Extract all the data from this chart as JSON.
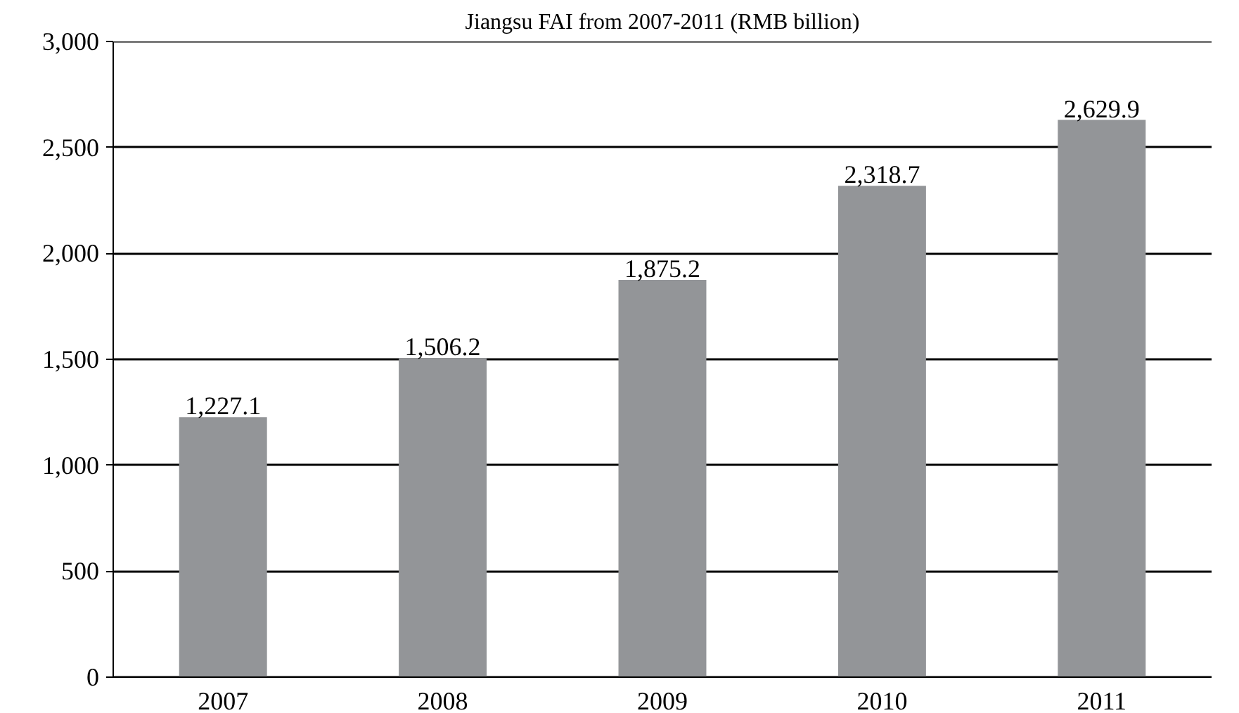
{
  "chart_data": {
    "type": "bar",
    "title": "Jiangsu FAI from 2007-2011 (RMB billion)",
    "categories": [
      "2007",
      "2008",
      "2009",
      "2010",
      "2011"
    ],
    "values": [
      1227.1,
      1506.2,
      1875.2,
      2318.7,
      2629.9
    ],
    "value_labels": [
      "1,227.1",
      "1,506.2",
      "1,875.2",
      "2,318.7",
      "2,629.9"
    ],
    "color": "#939598",
    "ylim": [
      0,
      3000
    ],
    "yticks": [
      0,
      500,
      {
        "value": 1000,
        "label": "1,000"
      },
      {
        "value": 1500,
        "label": "1,500"
      },
      {
        "value": 2000,
        "label": "2,000"
      },
      {
        "value": 2500,
        "label": "2,500"
      },
      {
        "value": 3000,
        "label": "3,000"
      }
    ],
    "grid": "y"
  }
}
